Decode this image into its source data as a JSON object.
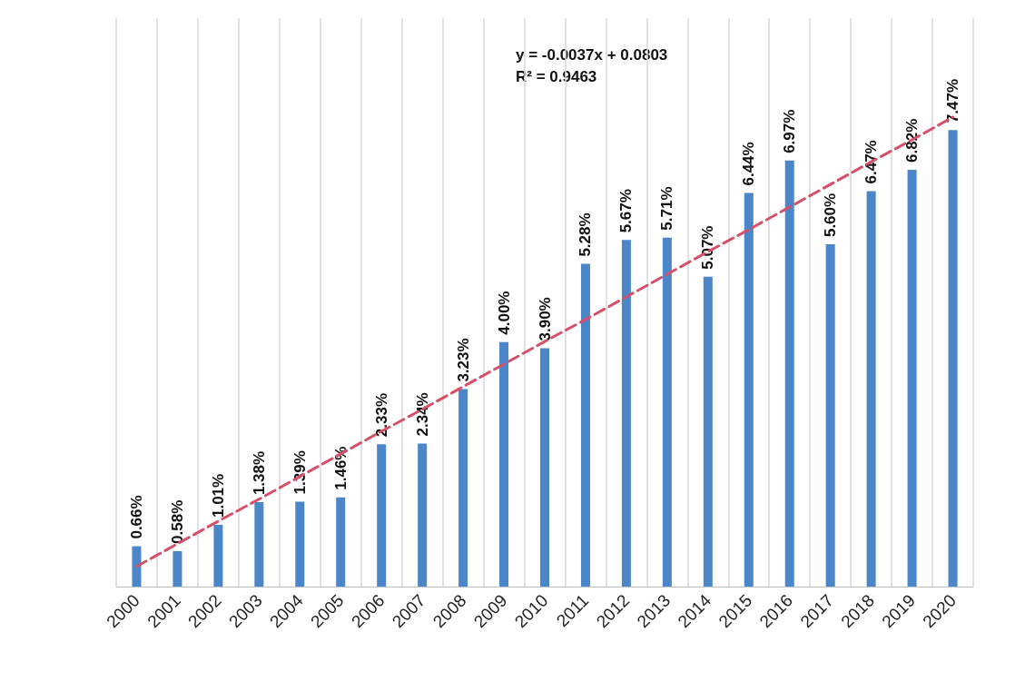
{
  "chart_data": {
    "type": "bar",
    "categories": [
      "2000",
      "2001",
      "2002",
      "2003",
      "2004",
      "2005",
      "2006",
      "2007",
      "2008",
      "2009",
      "2010",
      "2011",
      "2012",
      "2013",
      "2014",
      "2015",
      "2016",
      "2017",
      "2018",
      "2019",
      "2020"
    ],
    "series": [
      {
        "color": "#4a86c8",
        "values": [
          0.66,
          0.58,
          1.01,
          1.38,
          1.39,
          1.46,
          2.33,
          2.34,
          3.23,
          4.0,
          3.9,
          5.28,
          5.67,
          5.71,
          5.07,
          6.44,
          6.97,
          5.6,
          6.47,
          6.82,
          7.47
        ],
        "value_labels": [
          "0.66%",
          "0.58%",
          "1.01%",
          "1.38%",
          "1.39%",
          "1.46%",
          "2.33%",
          "2.34%",
          "3.23%",
          "4.00%",
          "3.90%",
          "5.28%",
          "5.67%",
          "5.71%",
          "5.07%",
          "6.44%",
          "6.97%",
          "5.60%",
          "6.47%",
          "6.82%",
          "7.47%"
        ]
      },
      {
        "type": "line",
        "color": "#d6506a",
        "line_style": "dashed",
        "marker": "none",
        "values": [
          0.33,
          0.7,
          1.07,
          1.43,
          1.8,
          2.17,
          2.54,
          2.9,
          3.27,
          3.64,
          4.01,
          4.37,
          4.74,
          5.11,
          5.48,
          5.84,
          6.21,
          6.58,
          6.95,
          7.31,
          7.68
        ]
      }
    ],
    "ylim": [
      0,
      9.3
    ],
    "tick_labels": "x",
    "grid": "x",
    "annotations": [
      "y = -0.0037x + 0.0803",
      "R² = 0.9463"
    ]
  }
}
